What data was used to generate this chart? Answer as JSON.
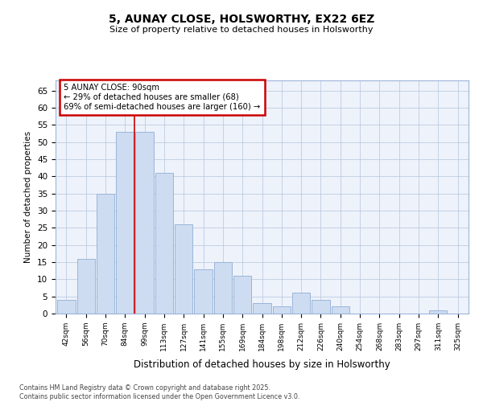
{
  "title1": "5, AUNAY CLOSE, HOLSWORTHY, EX22 6EZ",
  "title2": "Size of property relative to detached houses in Holsworthy",
  "xlabel": "Distribution of detached houses by size in Holsworthy",
  "ylabel": "Number of detached properties",
  "categories": [
    "42sqm",
    "56sqm",
    "70sqm",
    "84sqm",
    "99sqm",
    "113sqm",
    "127sqm",
    "141sqm",
    "155sqm",
    "169sqm",
    "184sqm",
    "198sqm",
    "212sqm",
    "226sqm",
    "240sqm",
    "254sqm",
    "268sqm",
    "283sqm",
    "297sqm",
    "311sqm",
    "325sqm"
  ],
  "values": [
    4,
    16,
    35,
    53,
    53,
    41,
    26,
    13,
    15,
    11,
    3,
    2,
    6,
    4,
    2,
    0,
    0,
    0,
    0,
    1,
    0
  ],
  "bar_color": "#cddcf0",
  "bar_edge_color": "#9ab5d9",
  "red_line_x": 3.5,
  "annotation_text": "5 AUNAY CLOSE: 90sqm\n← 29% of detached houses are smaller (68)\n69% of semi-detached houses are larger (160) →",
  "annotation_box_color": "#ffffff",
  "annotation_box_edge": "#cc0000",
  "ylim": [
    0,
    68
  ],
  "yticks": [
    0,
    5,
    10,
    15,
    20,
    25,
    30,
    35,
    40,
    45,
    50,
    55,
    60,
    65
  ],
  "plot_bg_color": "#eef2fa",
  "grid_color": "#b8c8e0",
  "footer_line1": "Contains HM Land Registry data © Crown copyright and database right 2025.",
  "footer_line2": "Contains public sector information licensed under the Open Government Licence v3.0."
}
